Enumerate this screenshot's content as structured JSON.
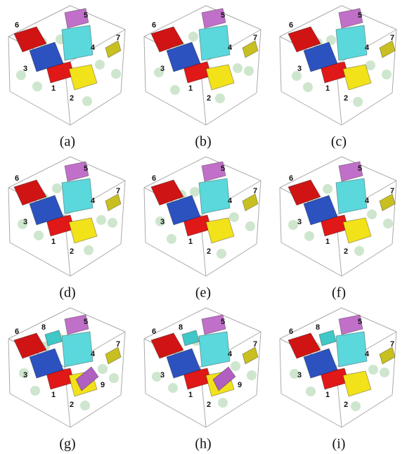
{
  "panels": [
    {
      "caption": "(a)",
      "labels": [
        "1",
        "2",
        "3",
        "4",
        "5",
        "6",
        "7"
      ]
    },
    {
      "caption": "(b)",
      "labels": [
        "1",
        "2",
        "3",
        "4",
        "5",
        "6",
        "7"
      ]
    },
    {
      "caption": "(c)",
      "labels": [
        "1",
        "2",
        "3",
        "4",
        "5",
        "6",
        "7"
      ]
    },
    {
      "caption": "(d)",
      "labels": [
        "1",
        "2",
        "3",
        "4",
        "5",
        "6",
        "7"
      ]
    },
    {
      "caption": "(e)",
      "labels": [
        "1",
        "2",
        "3",
        "4",
        "5",
        "6",
        "7"
      ]
    },
    {
      "caption": "(f)",
      "labels": [
        "1",
        "2",
        "3",
        "4",
        "5",
        "6",
        "7"
      ]
    },
    {
      "caption": "(g)",
      "labels": [
        "1",
        "2",
        "3",
        "4",
        "5",
        "6",
        "7",
        "8",
        "9"
      ]
    },
    {
      "caption": "(h)",
      "labels": [
        "1",
        "2",
        "3",
        "4",
        "5",
        "6",
        "7",
        "8",
        "9"
      ]
    },
    {
      "caption": "(i)",
      "labels": [
        "1",
        "2",
        "3",
        "4",
        "5",
        "6",
        "7",
        "8"
      ]
    }
  ]
}
